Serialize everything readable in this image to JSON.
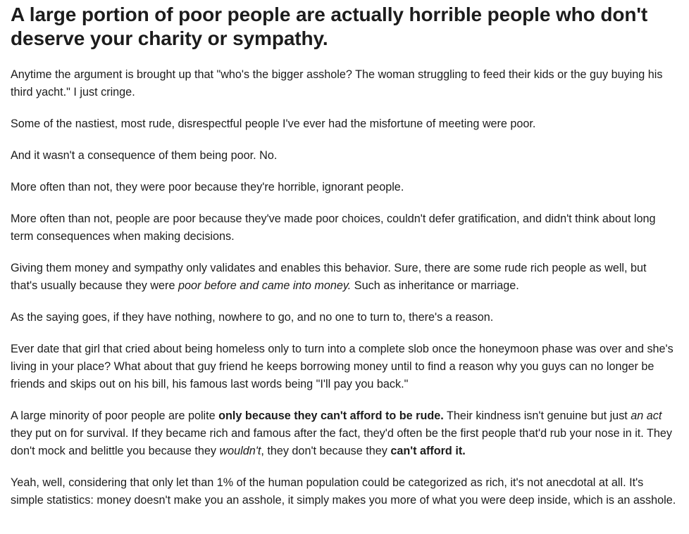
{
  "post": {
    "title": "A large portion of poor people are actually horrible people who don't deserve your charity or sympathy.",
    "p1": "Anytime the argument is brought up that \"who's the bigger asshole? The woman struggling to feed their kids or the guy buying his third yacht.\" I just cringe.",
    "p2": "Some of the nastiest, most rude, disrespectful people I've ever had the misfortune of meeting were poor.",
    "p3": "And it wasn't a consequence of them being poor. No.",
    "p4": "More often than not, they were poor because they're horrible, ignorant people.",
    "p5": "More often than not, people are poor because they've made poor choices, couldn't defer gratification, and didn't think about long term consequences when making decisions.",
    "p6": {
      "a": "Giving them money and sympathy only validates and enables this behavior. Sure, there are some rude rich people as well, but that's usually because they were ",
      "em": "poor before and came into money.",
      "b": " Such as inheritance or marriage."
    },
    "p7": "As the saying goes, if they have nothing, nowhere to go, and no one to turn to, there's a reason.",
    "p8": "Ever date that girl that cried about being homeless only to turn into a complete slob once the honeymoon phase was over and she's living in your place? What about that guy friend he keeps borrowing money until to find a reason why you guys can no longer be friends and skips out on his bill, his famous last words being \"I'll pay you back.\"",
    "p9": {
      "a": "A large minority of poor people are polite ",
      "strong1": "only because they can't afford to be rude.",
      "b": " Their kindness isn't genuine but just ",
      "em1": "an act",
      "c": " they put on for survival. If they became rich and famous after the fact, they'd often be the first people that'd rub your nose in it. They don't mock and belittle you because they ",
      "em2": "wouldn't",
      "d": ", they don't because they ",
      "strong2": "can't afford it."
    },
    "p10": "Yeah, well, considering that only let than 1% of the human population could be categorized as rich, it's not anecdotal at all. It's simple statistics: money doesn't make you an asshole, it simply makes you more of what you were deep inside, which is an asshole."
  }
}
